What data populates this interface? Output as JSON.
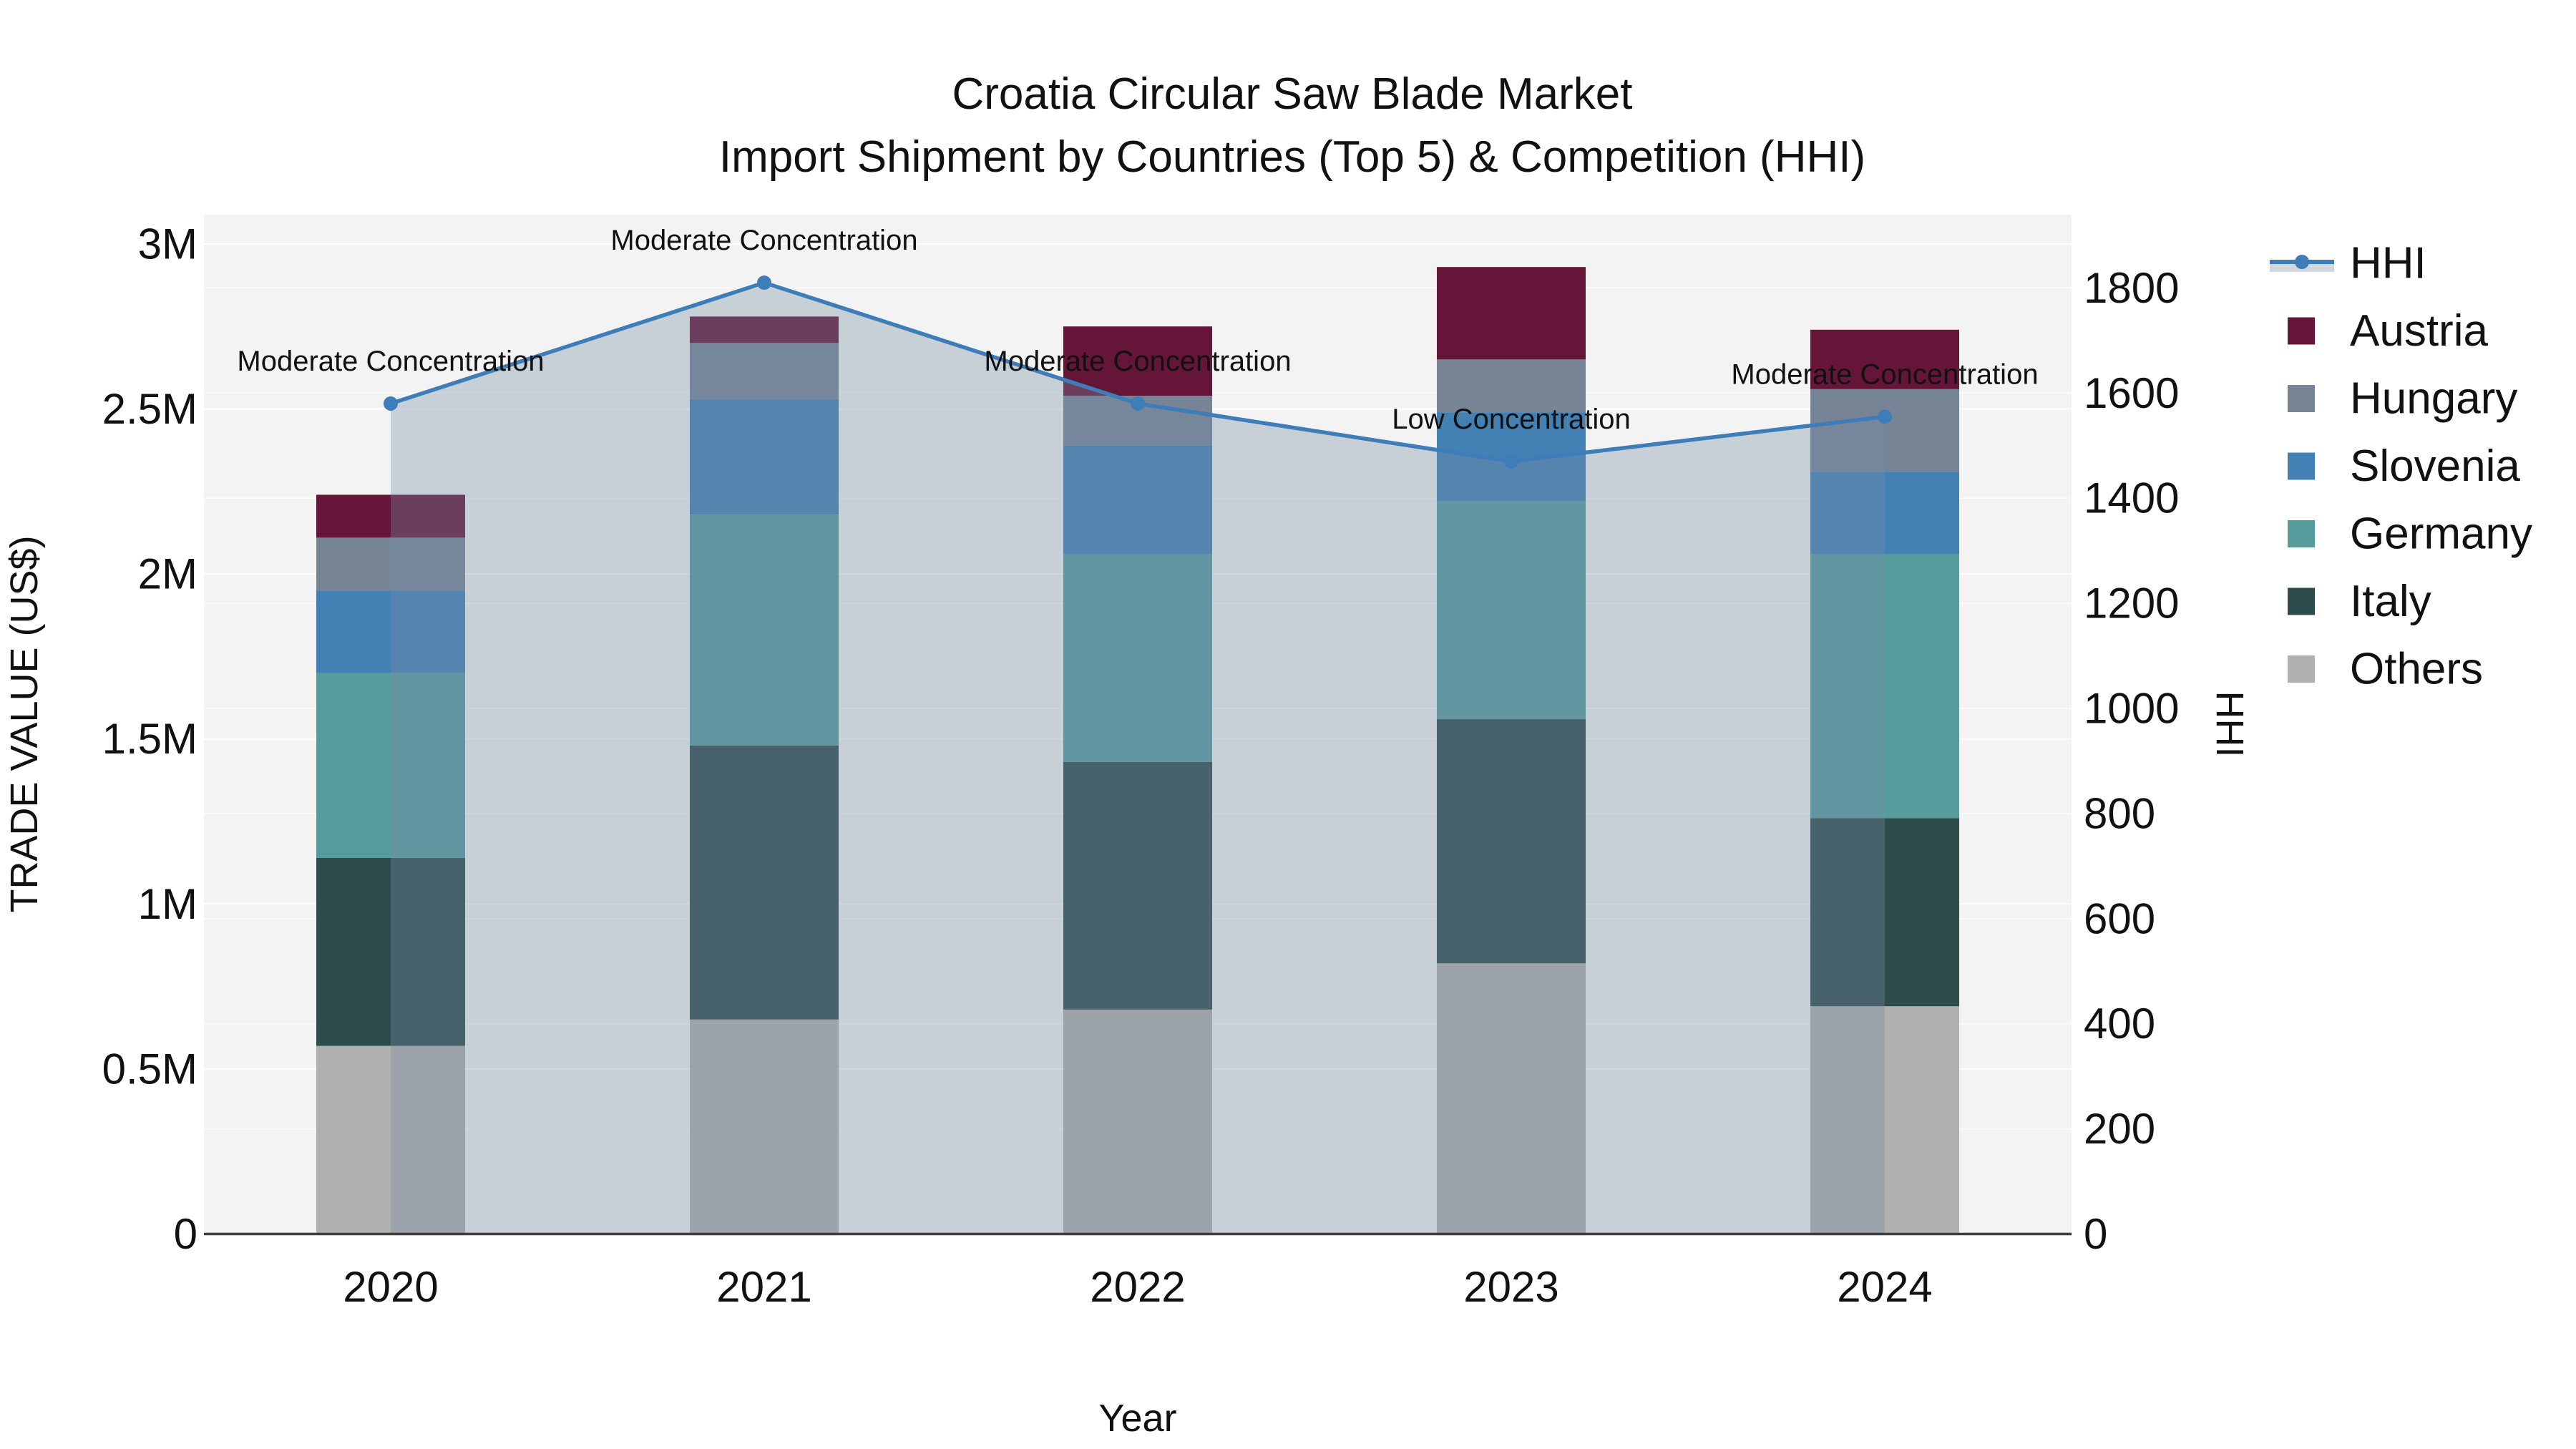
{
  "chart_data": {
    "type": "bar+line",
    "title": "Croatia Circular Saw Blade Market",
    "subtitle": "Import Shipment by Countries (Top 5) & Competition (HHI)",
    "xlabel": "Year",
    "ylabel_left": "TRADE VALUE (US$)",
    "ylabel_right": "HHI",
    "categories": [
      "2020",
      "2021",
      "2022",
      "2023",
      "2024"
    ],
    "value_unit": "millions of US$",
    "series": [
      {
        "name": "Austria",
        "color": "#641538",
        "values": [
          0.13,
          0.08,
          0.21,
          0.28,
          0.18
        ]
      },
      {
        "name": "Hungary",
        "color": "#768495",
        "values": [
          0.16,
          0.17,
          0.15,
          0.16,
          0.25
        ]
      },
      {
        "name": "Slovenia",
        "color": "#4380b4",
        "values": [
          0.25,
          0.35,
          0.33,
          0.27,
          0.25
        ]
      },
      {
        "name": "Germany",
        "color": "#579c9d",
        "values": [
          0.56,
          0.7,
          0.63,
          0.66,
          0.8
        ]
      },
      {
        "name": "Italy",
        "color": "#2e4c4c",
        "values": [
          0.57,
          0.83,
          0.75,
          0.74,
          0.57
        ]
      },
      {
        "name": "Others",
        "color": "#b0b0ae",
        "values": [
          0.57,
          0.65,
          0.68,
          0.82,
          0.69
        ]
      }
    ],
    "stack_order": [
      "Others",
      "Italy",
      "Germany",
      "Slovenia",
      "Hungary",
      "Austria"
    ],
    "totals": [
      2.24,
      2.78,
      2.75,
      2.93,
      2.74
    ],
    "hhi": {
      "name": "HHI",
      "color": "#3f7db8",
      "fill_color": "#788ca5",
      "fill_opacity": 0.35,
      "values": [
        1580,
        1810,
        1580,
        1470,
        1555
      ],
      "annotations": [
        "Moderate Concentration",
        "Moderate Concentration",
        "Moderate Concentration",
        "Low Concentration",
        "Moderate Concentration"
      ]
    },
    "y_left": {
      "ticks": [
        {
          "label": "0",
          "value": 0
        },
        {
          "label": "0.5M",
          "value": 0.5
        },
        {
          "label": "1M",
          "value": 1
        },
        {
          "label": "1.5M",
          "value": 1.5
        },
        {
          "label": "2M",
          "value": 2
        },
        {
          "label": "2.5M",
          "value": 2.5
        },
        {
          "label": "3M",
          "value": 3
        }
      ],
      "range": [
        0,
        3.09
      ],
      "grid": true
    },
    "y_right": {
      "ticks": [
        {
          "label": "0",
          "value": 0
        },
        {
          "label": "200",
          "value": 200
        },
        {
          "label": "400",
          "value": 400
        },
        {
          "label": "600",
          "value": 600
        },
        {
          "label": "800",
          "value": 800
        },
        {
          "label": "1000",
          "value": 1000
        },
        {
          "label": "1200",
          "value": 1200
        },
        {
          "label": "1400",
          "value": 1400
        },
        {
          "label": "1600",
          "value": 1600
        },
        {
          "label": "1800",
          "value": 1800
        }
      ],
      "range": [
        0,
        1940
      ],
      "grid": true
    },
    "legend": [
      {
        "id": "hhi",
        "label": "HHI",
        "type": "line",
        "color": "#3f7db8"
      },
      {
        "id": "austria",
        "label": "Austria",
        "type": "swatch",
        "color": "#641538"
      },
      {
        "id": "hungary",
        "label": "Hungary",
        "type": "swatch",
        "color": "#768495"
      },
      {
        "id": "slovenia",
        "label": "Slovenia",
        "type": "swatch",
        "color": "#4380b4"
      },
      {
        "id": "germany",
        "label": "Germany",
        "type": "swatch",
        "color": "#579c9d"
      },
      {
        "id": "italy",
        "label": "Italy",
        "type": "swatch",
        "color": "#2e4c4c"
      },
      {
        "id": "others",
        "label": "Others",
        "type": "swatch",
        "color": "#b0b0ae"
      }
    ],
    "colors": {
      "plot_background": "#f2f3f2",
      "page_background": "#ffffff",
      "gridline": "#ffffff",
      "axis_line": "#3e3e3e",
      "text": "#111111"
    }
  }
}
